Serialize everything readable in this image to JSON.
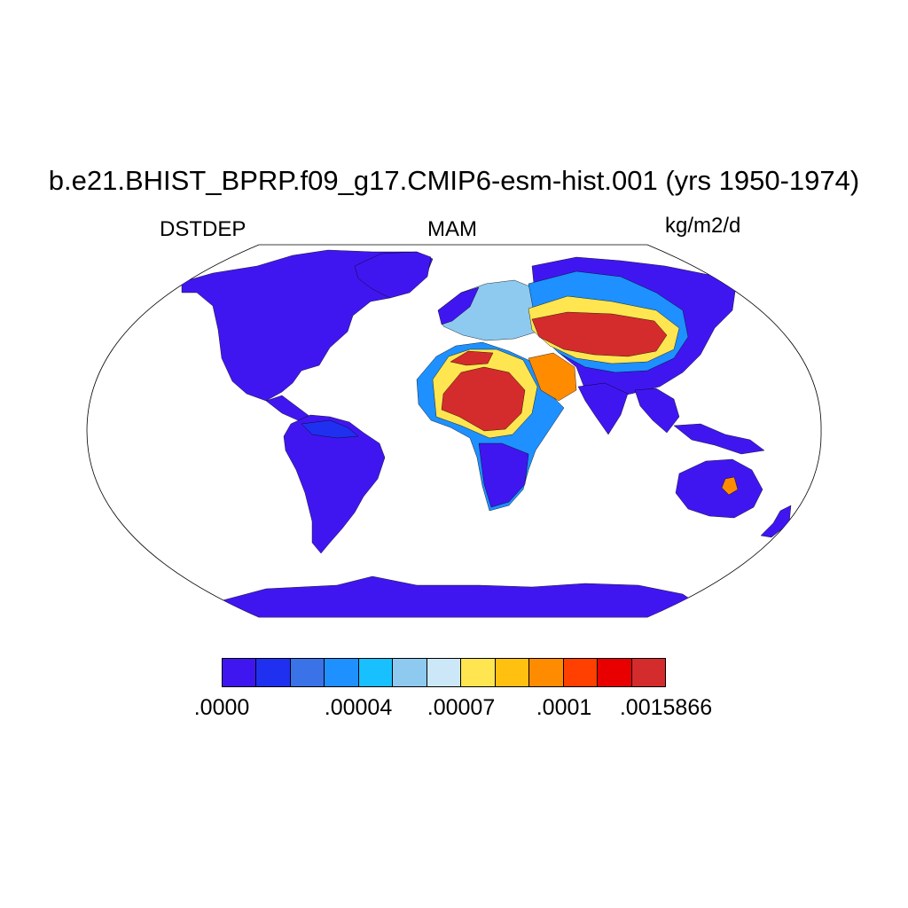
{
  "title": "b.e21.BHIST_BPRP.f09_g17.CMIP6-esm-hist.001 (yrs 1950-1974)",
  "left_string": "DSTDEP",
  "center_string": "MAM",
  "right_string": "kg/m2/d",
  "colorbar": {
    "colors": [
      "#4016f0",
      "#2030f0",
      "#3a72e8",
      "#1e90ff",
      "#18c0ff",
      "#8ecaf0",
      "#cce8f8",
      "#ffe650",
      "#ffc010",
      "#ff8c00",
      "#ff4000",
      "#e80000",
      "#d42c2c"
    ],
    "labels": [
      ".0000",
      ".00004",
      ".00007",
      ".0001",
      ".0015866"
    ]
  },
  "map_colors": {
    "ocean": "#ffffff",
    "low": "#4016f0",
    "mid_low": "#2030f0",
    "mid": "#1e90ff",
    "light": "#8ecaf0",
    "yellow": "#ffe650",
    "orange": "#ff8c00",
    "high": "#d42c2c"
  }
}
